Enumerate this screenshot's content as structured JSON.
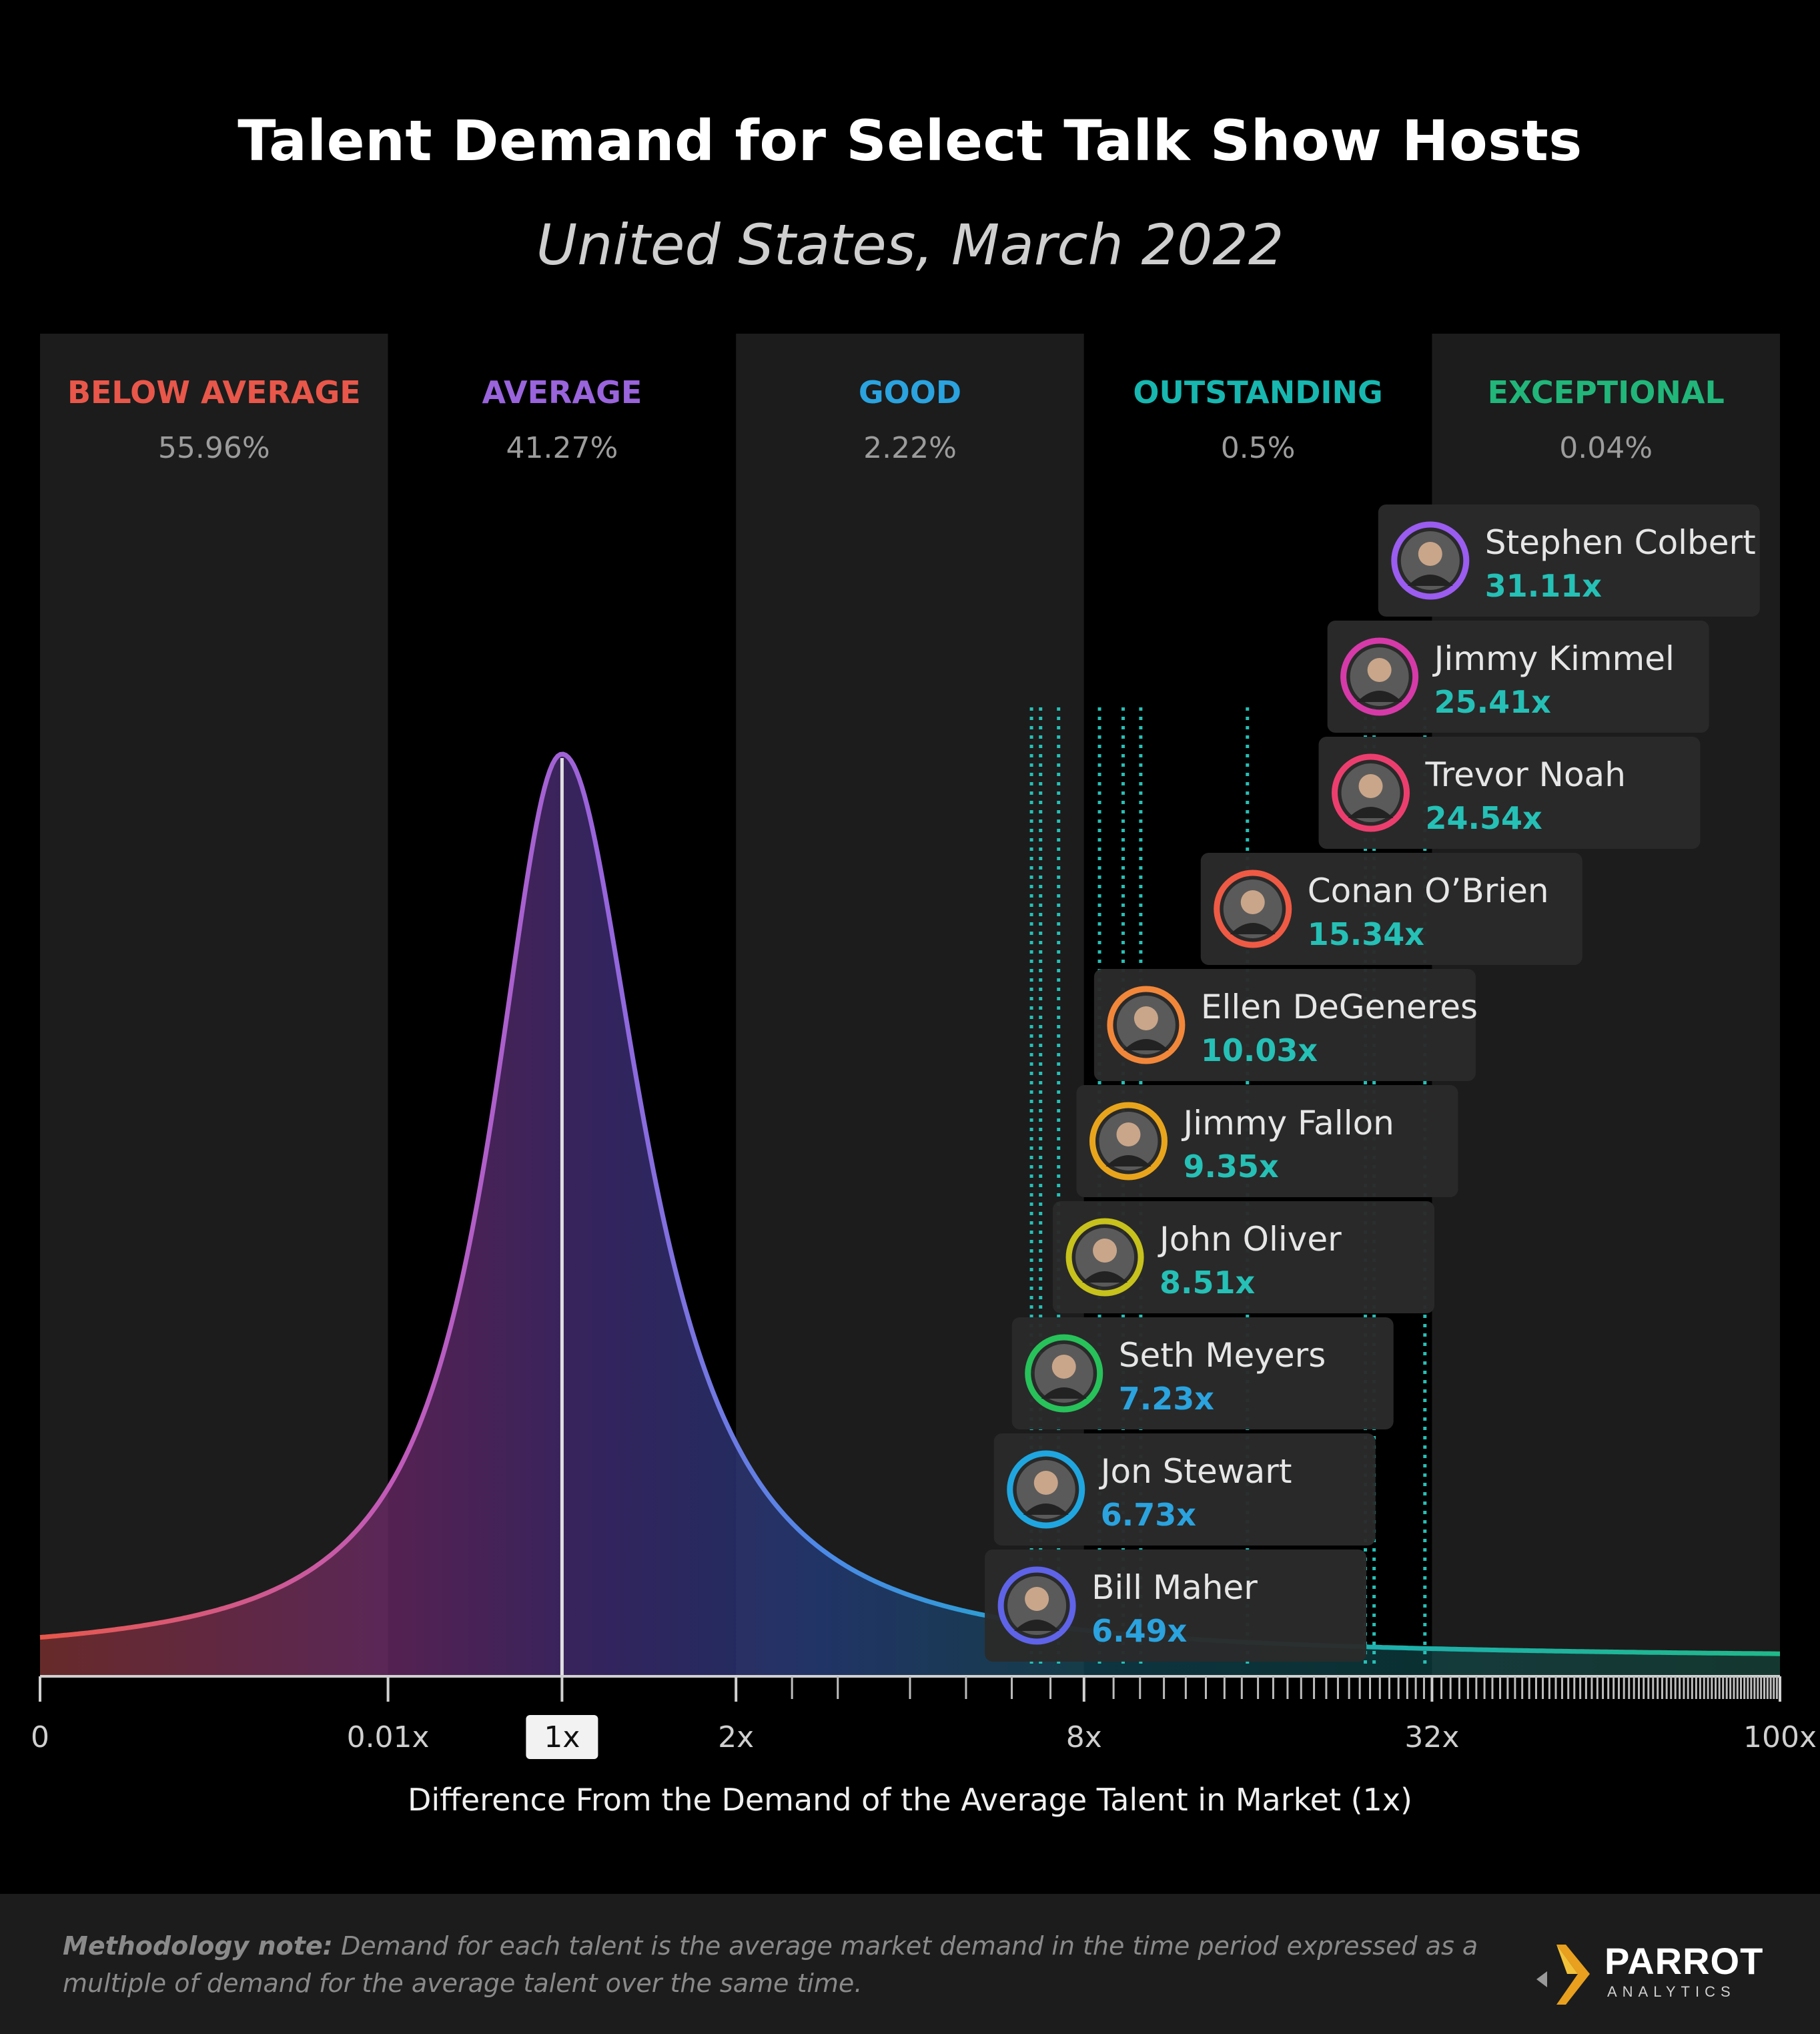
{
  "chart_data": {
    "type": "area",
    "title": "Talent Demand for Select Talk Show Hosts",
    "subtitle": "United States, March 2022",
    "xlabel": "Difference From the Demand of the Average Talent in Market (1x)",
    "x_ticks": [
      "0",
      "0.01x",
      "1x",
      "2x",
      "8x",
      "32x",
      "100x"
    ],
    "highlighted_tick": "1x",
    "bands": [
      {
        "label": "BELOW AVERAGE",
        "pct": "55.96%",
        "color": "#e8574a"
      },
      {
        "label": "AVERAGE",
        "pct": "41.27%",
        "color": "#9a64dc"
      },
      {
        "label": "GOOD",
        "pct": "2.22%",
        "color": "#2aa3df"
      },
      {
        "label": "OUTSTANDING",
        "pct": "0.5%",
        "color": "#17b7b0"
      },
      {
        "label": "EXCEPTIONAL",
        "pct": "0.04%",
        "color": "#21b67a"
      }
    ],
    "talents": [
      {
        "name": "Stephen Colbert",
        "value": 31.11,
        "label": "31.11x",
        "ring": "#9b5cf0",
        "value_color": "#25c0b6"
      },
      {
        "name": "Jimmy Kimmel",
        "value": 25.41,
        "label": "25.41x",
        "ring": "#d63aa8",
        "value_color": "#25c0b6"
      },
      {
        "name": "Trevor Noah",
        "value": 24.54,
        "label": "24.54x",
        "ring": "#ec3e6e",
        "value_color": "#25c0b6"
      },
      {
        "name": "Conan O’Brien",
        "value": 15.34,
        "label": "15.34x",
        "ring": "#ef5a44",
        "value_color": "#25c0b6"
      },
      {
        "name": "Ellen DeGeneres",
        "value": 10.03,
        "label": "10.03x",
        "ring": "#f2873a",
        "value_color": "#25c0b6"
      },
      {
        "name": "Jimmy Fallon",
        "value": 9.35,
        "label": "9.35x",
        "ring": "#e8a51c",
        "value_color": "#25c0b6"
      },
      {
        "name": "John Oliver",
        "value": 8.51,
        "label": "8.51x",
        "ring": "#c7c21c",
        "value_color": "#25c0b6"
      },
      {
        "name": "Seth Meyers",
        "value": 7.23,
        "label": "7.23x",
        "ring": "#27c25a",
        "value_color": "#2aa3df"
      },
      {
        "name": "Jon Stewart",
        "value": 6.73,
        "label": "6.73x",
        "ring": "#1fa6e0",
        "value_color": "#2aa3df"
      },
      {
        "name": "Bill Maher",
        "value": 6.49,
        "label": "6.49x",
        "ring": "#5f63e8",
        "value_color": "#2aa3df"
      }
    ]
  },
  "footer": {
    "method_label": "Methodology note:",
    "method_text": " Demand for each talent is the average market demand in the time period expressed as a multiple of demand for the average talent over the same time."
  },
  "logo": {
    "name": "PARROT",
    "sub": "ANALYTICS",
    "icon": "parrot-logo-icon"
  }
}
